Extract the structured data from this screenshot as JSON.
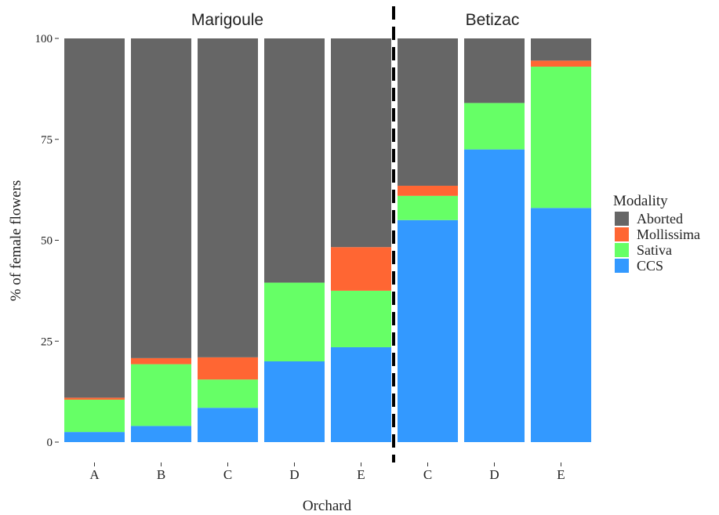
{
  "chart_data": {
    "type": "bar",
    "stacked": true,
    "xlabel": "Orchard",
    "ylabel": "% of female flowers",
    "ylim": [
      0,
      100
    ],
    "yticks": [
      0,
      25,
      50,
      75,
      100
    ],
    "grid": false,
    "legend": {
      "title": "Modality",
      "placement": "right",
      "entries": [
        "Aborted",
        "Mollissima",
        "Sativa",
        "CCS"
      ]
    },
    "facets": [
      "Marigoule",
      "Betizac"
    ],
    "categories": [
      "A",
      "B",
      "C",
      "D",
      "E",
      "C",
      "D",
      "E"
    ],
    "facet_of_category": [
      "Marigoule",
      "Marigoule",
      "Marigoule",
      "Marigoule",
      "Marigoule",
      "Betizac",
      "Betizac",
      "Betizac"
    ],
    "series": [
      {
        "name": "CCS",
        "color": "#3399ff",
        "values": [
          2.5,
          4.0,
          8.5,
          20.0,
          23.5,
          55.0,
          72.5,
          58.0
        ]
      },
      {
        "name": "Sativa",
        "color": "#66ff66",
        "values": [
          8.0,
          15.3,
          7.0,
          19.5,
          14.0,
          6.0,
          11.5,
          35.0
        ]
      },
      {
        "name": "Mollissima",
        "color": "#ff6633",
        "values": [
          0.5,
          1.5,
          5.5,
          0.0,
          10.8,
          2.5,
          0.0,
          1.5
        ]
      },
      {
        "name": "Aborted",
        "color": "#666666",
        "values": [
          89.0,
          79.2,
          79.0,
          60.5,
          51.7,
          36.5,
          16.0,
          5.5
        ]
      }
    ]
  }
}
